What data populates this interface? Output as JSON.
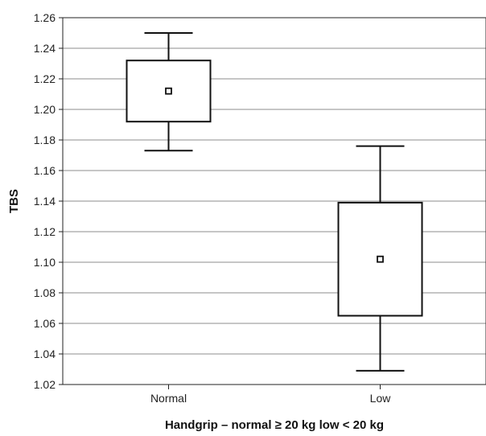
{
  "chart_data": {
    "type": "box",
    "xlabel": "Handgrip – normal ≥ 20 kg low < 20 kg",
    "ylabel": "TBS",
    "ylim": [
      1.02,
      1.26
    ],
    "yticks": [
      1.02,
      1.04,
      1.06,
      1.08,
      1.1,
      1.12,
      1.14,
      1.16,
      1.18,
      1.2,
      1.22,
      1.24,
      1.26
    ],
    "ytick_labels": [
      "1.02",
      "1.04",
      "1.06",
      "1.08",
      "1.10",
      "1.12",
      "1.14",
      "1.16",
      "1.18",
      "1.20",
      "1.22",
      "1.24",
      "1.26"
    ],
    "grid": true,
    "categories": [
      "Normal",
      "Low"
    ],
    "boxes": [
      {
        "category": "Normal",
        "whisker_low": 1.173,
        "q1": 1.192,
        "mean": 1.212,
        "q3": 1.232,
        "whisker_high": 1.25
      },
      {
        "category": "Low",
        "whisker_low": 1.029,
        "q1": 1.065,
        "mean": 1.102,
        "q3": 1.139,
        "whisker_high": 1.176
      }
    ]
  }
}
